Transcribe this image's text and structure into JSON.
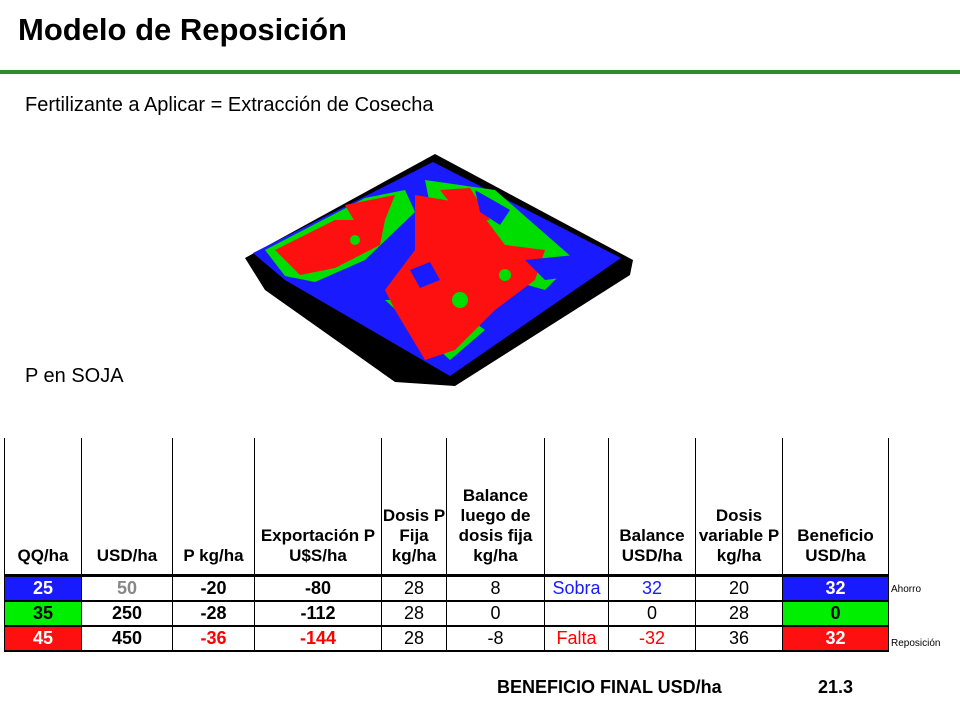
{
  "title": "Modelo de Reposición",
  "subtitle": "Fertilizante a Aplicar = Extracción de Cosecha",
  "caption": "P en SOJA",
  "colors": {
    "blue": "#1a1aff",
    "green": "#00ee00",
    "red": "#ff1010",
    "rule": "#2e8b2e"
  },
  "table": {
    "headers": [
      "QQ/ha",
      "USD/ha",
      "P kg/ha",
      "Exportación P U$S/ha",
      "Dosis P Fija kg/ha",
      "Balance luego de dosis fija kg/ha",
      "",
      "Balance USD/ha",
      "Dosis variable P kg/ha",
      "Beneficio USD/ha"
    ],
    "rows": [
      [
        "25",
        "50",
        "-20",
        "-80",
        "28",
        "8",
        "Sobra",
        "32",
        "20",
        "32"
      ],
      [
        "35",
        "250",
        "-28",
        "-112",
        "28",
        "0",
        "",
        "0",
        "28",
        "0"
      ],
      [
        "45",
        "450",
        "-36",
        "-144",
        "28",
        "-8",
        "Falta",
        "-32",
        "36",
        "32"
      ]
    ]
  },
  "side_labels": {
    "row1": "Ahorro",
    "row3": "Reposición"
  },
  "final": {
    "label": "BENEFICIO FINAL USD/ha",
    "value": "21.3"
  }
}
